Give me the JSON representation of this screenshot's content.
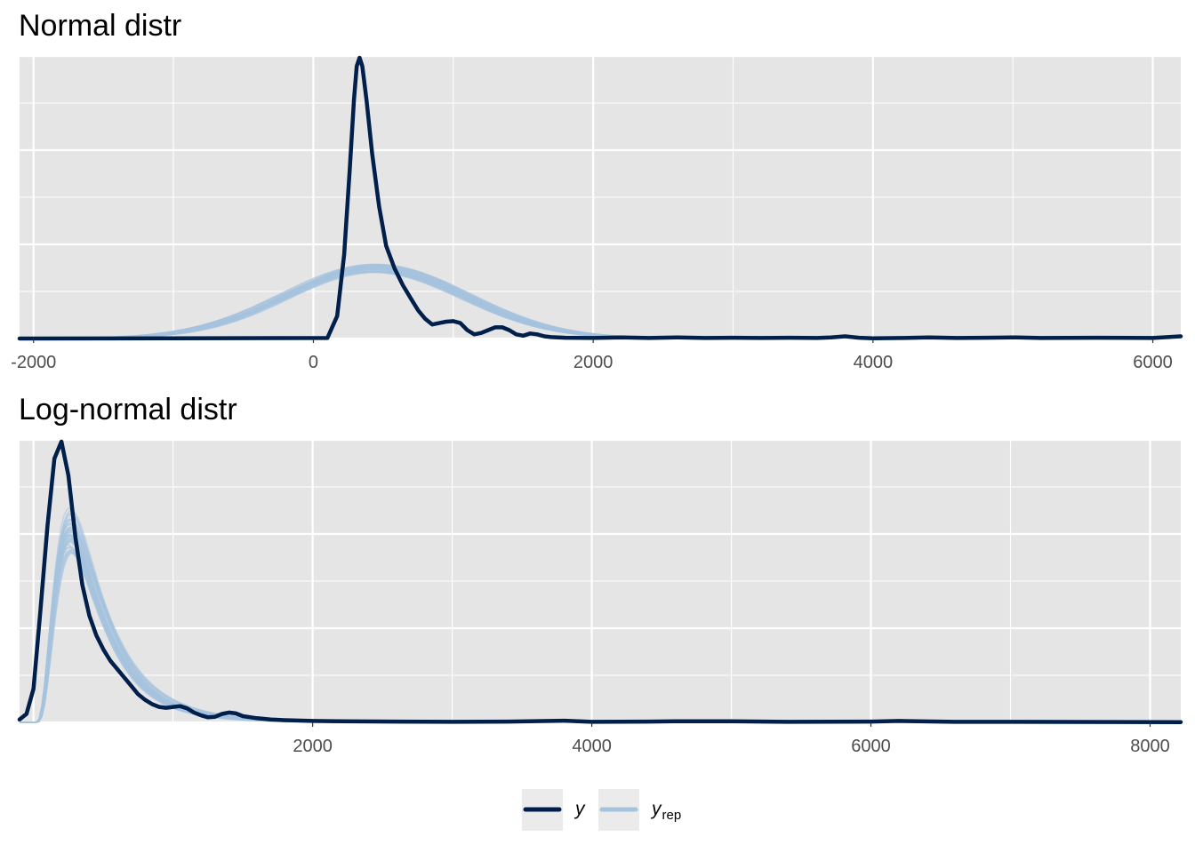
{
  "chart_data": [
    {
      "type": "line",
      "title": "Normal distr",
      "xlabel": "",
      "ylabel": "",
      "xlim": [
        -2100,
        6200
      ],
      "xticks": [
        -2000,
        0,
        2000,
        4000,
        6000
      ],
      "xtick_labels": [
        "-2000",
        "0",
        "2000",
        "4000",
        "6000"
      ],
      "yticks_visible": false,
      "grid": true,
      "series": [
        {
          "name": "y",
          "color": "#011f4b",
          "x": [
            -2100,
            100,
            170,
            220,
            260,
            290,
            310,
            330,
            350,
            380,
            420,
            470,
            520,
            580,
            640,
            700,
            750,
            800,
            850,
            900,
            950,
            1000,
            1050,
            1100,
            1150,
            1200,
            1250,
            1300,
            1350,
            1400,
            1450,
            1500,
            1550,
            1600,
            1650,
            1700,
            1800,
            2000,
            2200,
            2400,
            2600,
            2800,
            3000,
            3200,
            3400,
            3600,
            3700,
            3800,
            3900,
            4000,
            4200,
            4400,
            4600,
            4800,
            5000,
            5200,
            5600,
            6000,
            6200
          ],
          "y": [
            0,
            0.002,
            0.08,
            0.3,
            0.6,
            0.85,
            0.97,
            1.0,
            0.97,
            0.85,
            0.66,
            0.47,
            0.33,
            0.25,
            0.19,
            0.14,
            0.1,
            0.07,
            0.05,
            0.055,
            0.06,
            0.062,
            0.055,
            0.03,
            0.015,
            0.02,
            0.03,
            0.04,
            0.04,
            0.03,
            0.015,
            0.01,
            0.018,
            0.015,
            0.008,
            0.005,
            0.003,
            0.002,
            0.004,
            0.002,
            0.004,
            0.002,
            0.003,
            0.002,
            0.003,
            0.002,
            0.004,
            0.008,
            0.003,
            0.001,
            0.002,
            0.004,
            0.002,
            0.003,
            0.004,
            0.002,
            0.003,
            0.002,
            0.008
          ]
        },
        {
          "name": "y_rep",
          "color": "#a6c3de",
          "mean": 450,
          "sd": 640,
          "peak": 0.25,
          "draws": 40,
          "x_range": [
            -2100,
            2600
          ]
        }
      ]
    },
    {
      "type": "line",
      "title": "Log-normal distr",
      "xlabel": "",
      "ylabel": "",
      "xlim": [
        -100,
        8220
      ],
      "xticks": [
        2000,
        4000,
        6000,
        8000
      ],
      "xtick_labels": [
        "2000",
        "4000",
        "6000",
        "8000"
      ],
      "yticks_visible": false,
      "grid": true,
      "series": [
        {
          "name": "y",
          "color": "#011f4b",
          "x": [
            -100,
            -50,
            0,
            50,
            100,
            150,
            200,
            250,
            300,
            350,
            400,
            450,
            500,
            550,
            600,
            650,
            700,
            750,
            800,
            850,
            900,
            950,
            1000,
            1050,
            1100,
            1150,
            1200,
            1250,
            1300,
            1350,
            1400,
            1450,
            1500,
            1600,
            1700,
            1800,
            2000,
            2200,
            2600,
            3000,
            3400,
            3800,
            4000,
            4400,
            4600,
            5000,
            5400,
            6000,
            6200,
            6600,
            7000,
            8220
          ],
          "y": [
            0.01,
            0.03,
            0.12,
            0.4,
            0.7,
            0.94,
            1.0,
            0.88,
            0.66,
            0.49,
            0.38,
            0.31,
            0.26,
            0.22,
            0.19,
            0.16,
            0.13,
            0.1,
            0.08,
            0.065,
            0.055,
            0.052,
            0.055,
            0.058,
            0.05,
            0.035,
            0.025,
            0.018,
            0.02,
            0.03,
            0.035,
            0.032,
            0.022,
            0.015,
            0.01,
            0.008,
            0.005,
            0.004,
            0.003,
            0.002,
            0.003,
            0.006,
            0.002,
            0.003,
            0.004,
            0.004,
            0.002,
            0.003,
            0.005,
            0.002,
            0.002,
            0.001
          ]
        },
        {
          "name": "y_rep",
          "color": "#a6c3de",
          "log_mu": 5.95,
          "log_sigma": 0.62,
          "peak": 0.68,
          "draws": 40,
          "x_range": [
            -100,
            2600
          ]
        }
      ]
    }
  ],
  "legend": {
    "position": "bottom",
    "items": [
      {
        "label": "y",
        "subscript": "",
        "color": "#011f4b"
      },
      {
        "label": "y",
        "subscript": "rep",
        "color": "#a6c3de"
      }
    ]
  }
}
